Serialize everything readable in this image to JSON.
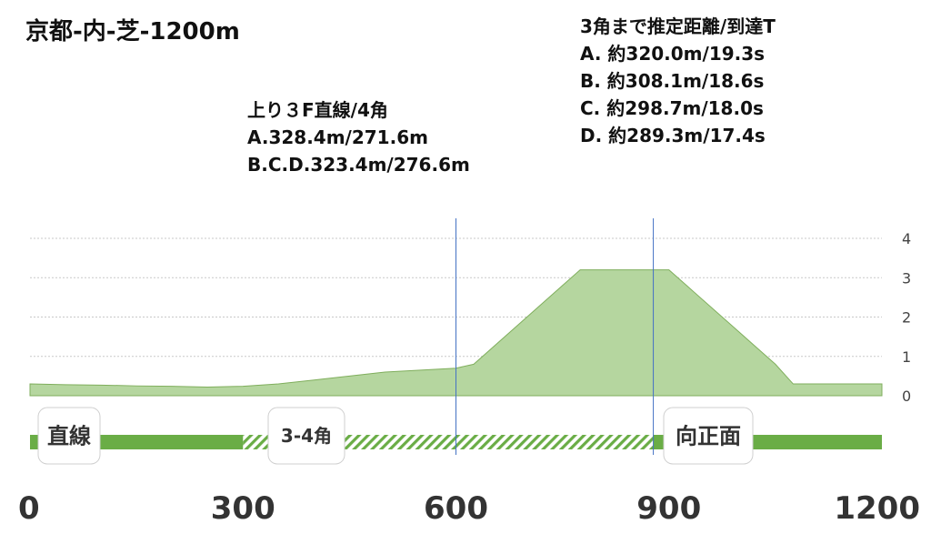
{
  "title": "京都-内-芝-1200m",
  "notes": {
    "estimate": {
      "heading": "3角まで推定距離/到達T",
      "lines": [
        "A. 約320.0m/19.3s",
        "B. 約308.1m/18.6s",
        "C. 約298.7m/18.0s",
        "D. 約289.3m/17.4s"
      ]
    },
    "upstretch": {
      "heading": "上り３F直線/4角",
      "lines": [
        "A.328.4m/271.6m",
        "B.C.D.323.4m/276.6m"
      ]
    }
  },
  "chart_data": {
    "type": "area",
    "title": "京都-内-芝-1200m",
    "x": [
      0,
      50,
      100,
      150,
      200,
      250,
      300,
      350,
      400,
      450,
      500,
      550,
      600,
      625,
      650,
      700,
      750,
      775,
      900,
      925,
      1000,
      1050,
      1075,
      1200
    ],
    "y": [
      0.3,
      0.28,
      0.27,
      0.25,
      0.24,
      0.22,
      0.24,
      0.3,
      0.4,
      0.5,
      0.6,
      0.65,
      0.7,
      0.8,
      1.2,
      2.0,
      2.8,
      3.2,
      3.2,
      2.8,
      1.6,
      0.8,
      0.3,
      0.3
    ],
    "ylim": [
      0,
      4
    ],
    "y_ticks": [
      0,
      1,
      2,
      3,
      4
    ],
    "xlim": [
      0,
      1200
    ],
    "x_ticks": [
      0,
      300,
      600,
      900,
      1200
    ],
    "markers_x": [
      600,
      878
    ],
    "grid": true,
    "course_segments": [
      {
        "label": "直線",
        "start": 0,
        "end": 300,
        "style": "solid"
      },
      {
        "label": "3-4角",
        "start": 300,
        "end": 878,
        "style": "hatched"
      },
      {
        "label": "向正面",
        "start": 878,
        "end": 1200,
        "style": "solid"
      }
    ],
    "colors": {
      "area_fill": "#b5d69f",
      "area_stroke": "#7fae5c",
      "track": "#6aad46",
      "marker": "#4472c4",
      "grid": "#c8c8c8"
    }
  }
}
